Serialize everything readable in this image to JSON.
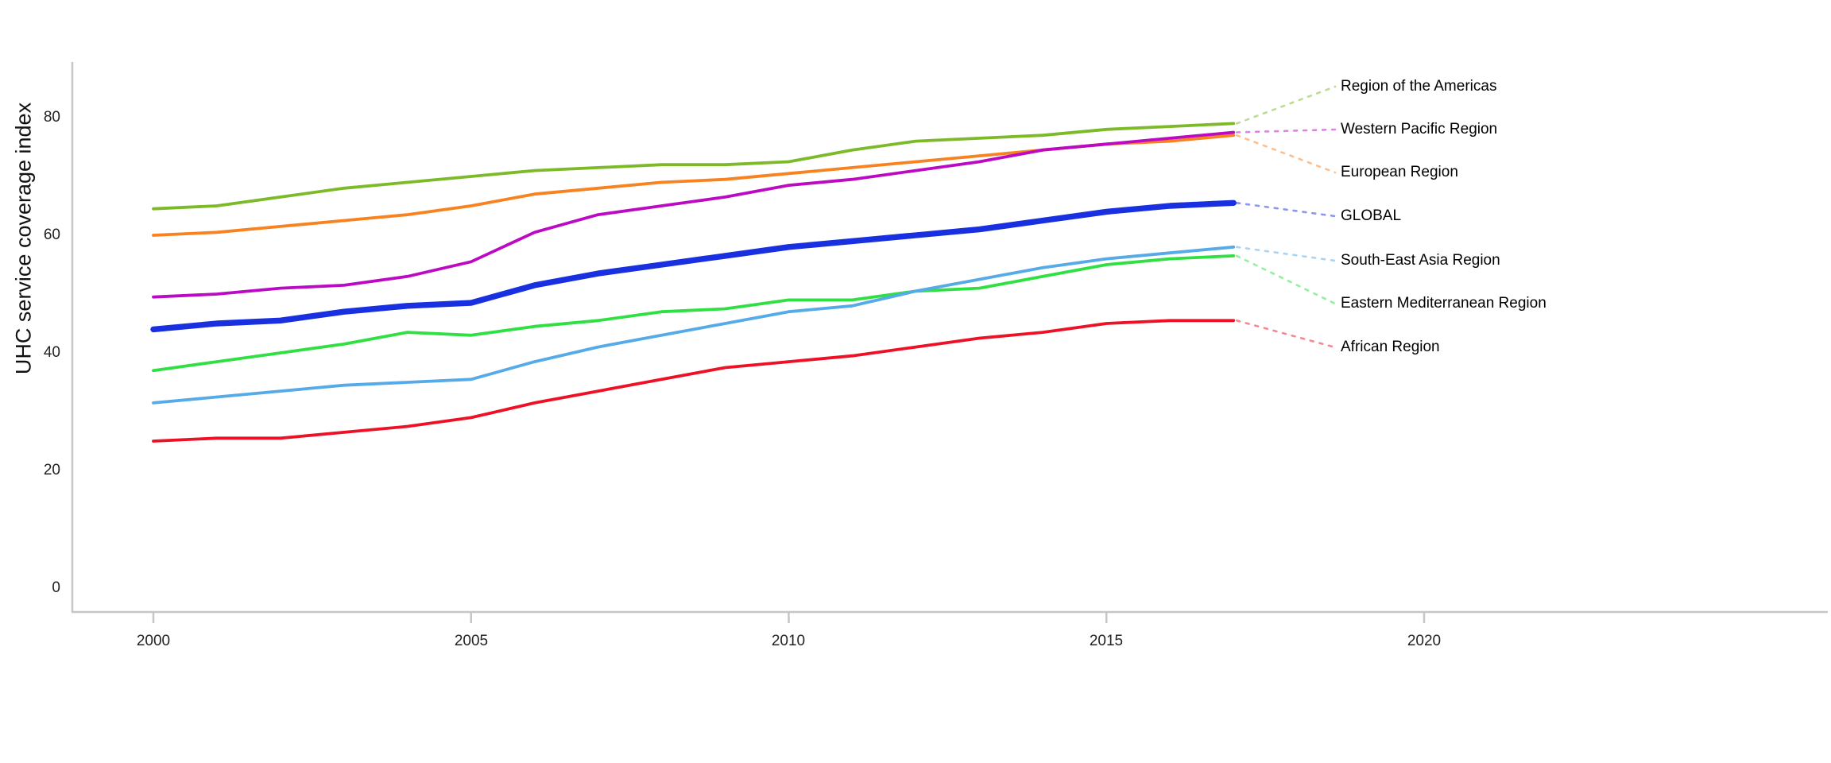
{
  "chart_data": {
    "type": "line",
    "title": "",
    "xlabel": "",
    "ylabel": "UHC service coverage index",
    "grid": false,
    "legend_position": "right-of-line-ends",
    "x": [
      2000,
      2001,
      2002,
      2003,
      2004,
      2005,
      2006,
      2007,
      2008,
      2009,
      2010,
      2011,
      2012,
      2013,
      2014,
      2015,
      2016,
      2017
    ],
    "xticks": [
      2000,
      2005,
      2010,
      2015,
      2020
    ],
    "yticks": [
      0,
      20,
      40,
      60,
      80
    ],
    "xlim": [
      1998.7,
      2026.4
    ],
    "ylim": [
      0,
      84
    ],
    "axis_color": "#c6c6c6",
    "series": [
      {
        "name": "Region of the Americas",
        "color": "#7cba28",
        "thick": false,
        "values": [
          64.5,
          65,
          66.5,
          68,
          69,
          70,
          71,
          71.5,
          72,
          72,
          72.5,
          74.5,
          76,
          76.5,
          77,
          78,
          78.5,
          79
        ]
      },
      {
        "name": "Western Pacific Region",
        "color": "#bc0ac4",
        "thick": false,
        "values": [
          49.5,
          50,
          51,
          51.5,
          53,
          55.5,
          60.5,
          63.5,
          65,
          66.5,
          68.5,
          69.5,
          71,
          72.5,
          74.5,
          75.5,
          76.5,
          77.5
        ]
      },
      {
        "name": "European Region",
        "color": "#f8821f",
        "thick": false,
        "values": [
          60,
          60.5,
          61.5,
          62.5,
          63.5,
          65,
          67,
          68,
          69,
          69.5,
          70.5,
          71.5,
          72.5,
          73.5,
          74.5,
          75.5,
          76,
          77
        ]
      },
      {
        "name": "GLOBAL",
        "color": "#1830e0",
        "thick": true,
        "values": [
          44,
          45,
          45.5,
          47,
          48,
          48.5,
          51.5,
          53.5,
          55,
          56.5,
          58,
          59,
          60,
          61,
          62.5,
          64,
          65,
          65.5
        ]
      },
      {
        "name": "South-East Asia Region",
        "color": "#55aae8",
        "thick": false,
        "values": [
          31.5,
          32.5,
          33.5,
          34.5,
          35,
          35.5,
          38.5,
          41,
          43,
          45,
          47,
          48,
          50.5,
          52.5,
          54.5,
          56,
          57,
          58
        ]
      },
      {
        "name": "Eastern Mediterranean Region",
        "color": "#2ee042",
        "thick": false,
        "values": [
          37,
          38.5,
          40,
          41.5,
          43.5,
          43,
          44.5,
          45.5,
          47,
          47.5,
          49,
          49,
          50.5,
          51,
          53,
          55,
          56,
          56.5
        ]
      },
      {
        "name": "African Region",
        "color": "#ee1126",
        "thick": false,
        "values": [
          25,
          25.5,
          25.5,
          26.5,
          27.5,
          29,
          31.5,
          33.5,
          35.5,
          37.5,
          38.5,
          39.5,
          41,
          42.5,
          43.5,
          45,
          45.5,
          45.5
        ]
      }
    ]
  }
}
